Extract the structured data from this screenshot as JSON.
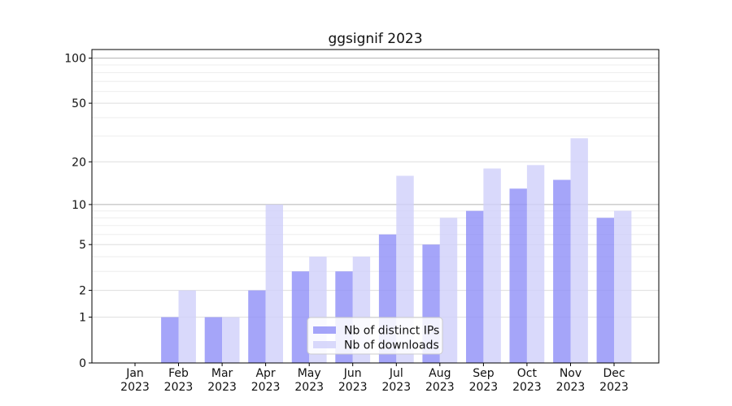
{
  "chart_data": {
    "type": "bar",
    "title": "ggsignif 2023",
    "categories": [
      "Jan",
      "Feb",
      "Mar",
      "Apr",
      "May",
      "Jun",
      "Jul",
      "Aug",
      "Sep",
      "Oct",
      "Nov",
      "Dec"
    ],
    "x_axis": {
      "months": [
        "Jan",
        "Feb",
        "Mar",
        "Apr",
        "May",
        "Jun",
        "Jul",
        "Aug",
        "Sep",
        "Oct",
        "Nov",
        "Dec"
      ],
      "years": [
        "2023",
        "2023",
        "2023",
        "2023",
        "2023",
        "2023",
        "2023",
        "2023",
        "2023",
        "2023",
        "2023",
        "2023"
      ]
    },
    "y_axis": {
      "scale": "log1p",
      "ylim": [
        0,
        114
      ],
      "tick_values": [
        0,
        1,
        2,
        5,
        10,
        20,
        50,
        100
      ],
      "tick_labels": [
        "0",
        "1",
        "2",
        "5",
        "10",
        "20",
        "50",
        "100"
      ],
      "gridlines": {
        "strong": [
          10,
          100
        ],
        "medium": [
          1,
          2,
          5,
          20,
          50
        ],
        "minor": [
          3,
          4,
          6,
          7,
          8,
          9,
          30,
          40,
          60,
          70,
          80,
          90
        ]
      },
      "grid": true
    },
    "series": [
      {
        "name": "Nb of distinct IPs",
        "key": "distinct-ips",
        "color": "#8f8ff8",
        "opacity": 0.8,
        "values": [
          0,
          1,
          1,
          2,
          3,
          3,
          6,
          5,
          9,
          13,
          15,
          8
        ]
      },
      {
        "name": "Nb of downloads",
        "key": "downloads",
        "color": "#cfcffa",
        "opacity": 0.8,
        "values": [
          0,
          2,
          1,
          10,
          4,
          4,
          16,
          8,
          18,
          19,
          29,
          9
        ]
      }
    ],
    "legend": {
      "position": "lower-center-inside",
      "entries": [
        "Nb of distinct IPs",
        "Nb of downloads"
      ]
    }
  },
  "colors": {
    "background": "#ffffff",
    "spine": "#000000",
    "tick": "#000000",
    "text": "#111111",
    "grid_strong": "#b3b3b3",
    "grid_medium": "#dedede",
    "grid_minor": "#eeeeee",
    "legend_border": "#cccccc",
    "legend_bg": "#ffffff"
  }
}
